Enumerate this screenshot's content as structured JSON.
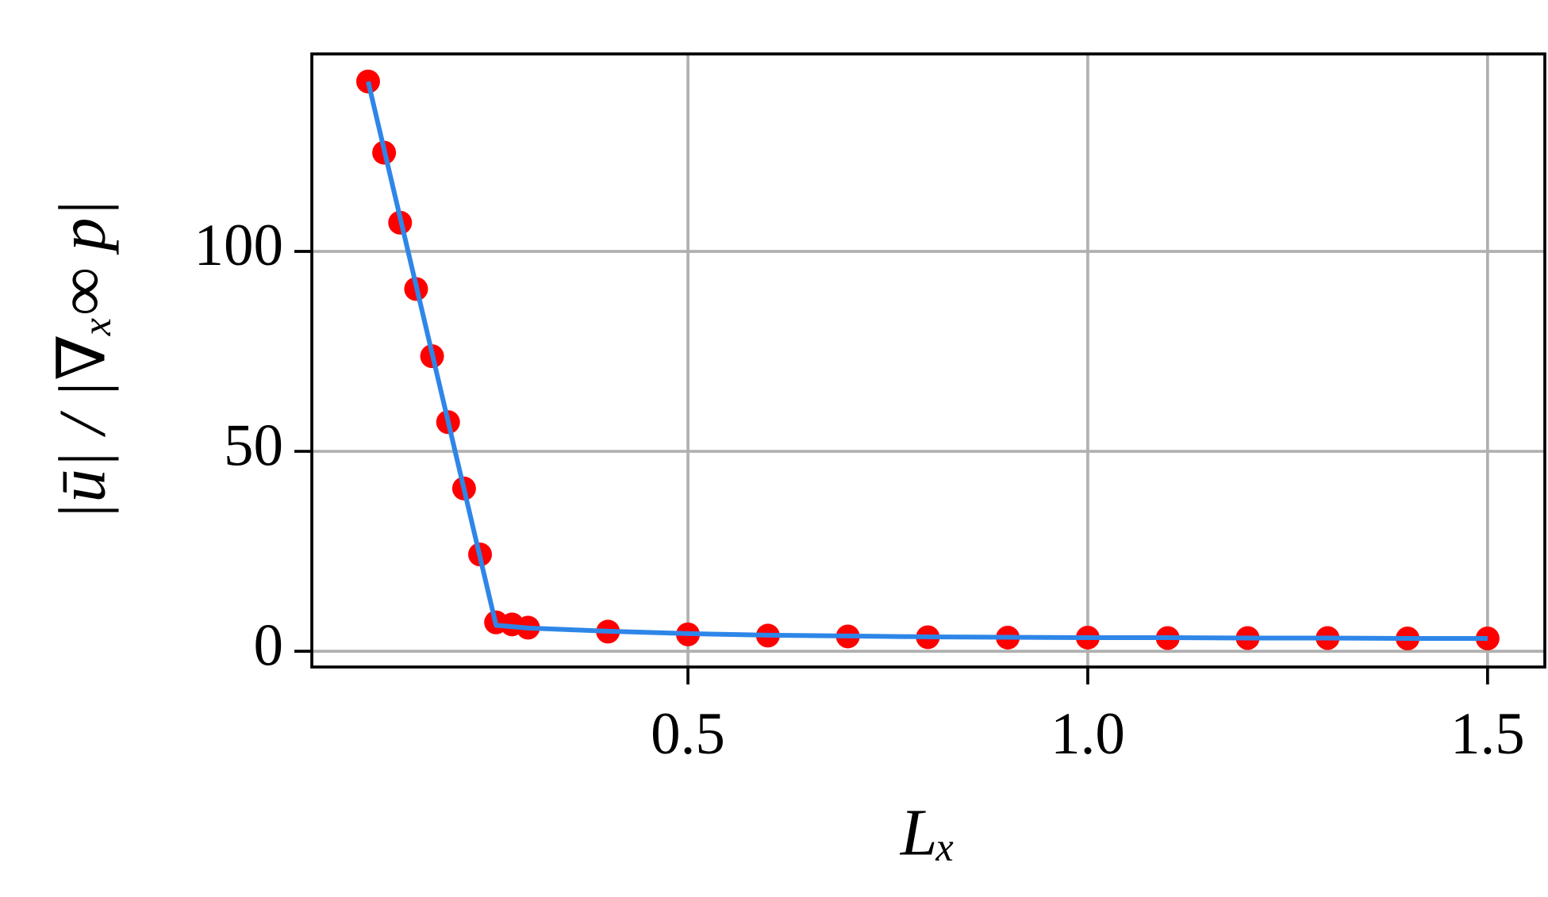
{
  "chart_data": {
    "type": "scatter",
    "xlabel": "Lₓ",
    "ylabel": "|ū| / |∇ₓ∞ p|",
    "xlim": [
      0.0296,
      1.5716
    ],
    "ylim": [
      -3.95,
      149.4
    ],
    "xticks": [
      0.5,
      {
        "value": 1,
        "label": "1.0"
      },
      1.5
    ],
    "yticks": [
      0,
      50,
      100
    ],
    "grid": true,
    "series": [
      {
        "type": "scatter",
        "color": "#ff0000",
        "x": [
          0.1,
          0.12,
          0.14,
          0.16,
          0.18,
          0.2,
          0.22,
          0.24,
          0.26,
          0.28,
          0.3,
          0.4,
          0.5,
          0.6,
          0.7,
          0.8,
          0.9,
          1.0,
          1.1,
          1.2,
          1.3,
          1.4,
          1.5
        ],
        "values": [
          142.5,
          124.7,
          107.2,
          90.6,
          73.8,
          57.3,
          40.7,
          24.2,
          7.2,
          6.7,
          5.9,
          4.9,
          4.2,
          3.9,
          3.7,
          3.5,
          3.4,
          3.4,
          3.3,
          3.3,
          3.3,
          3.2,
          3.2
        ]
      },
      {
        "type": "line",
        "color": "#2e86e8",
        "x": [
          0.1,
          0.26,
          0.3,
          0.4,
          0.5,
          0.6,
          0.7,
          0.8,
          0.9,
          1.0,
          1.1,
          1.2,
          1.3,
          1.4,
          1.5
        ],
        "values": [
          142.5,
          6.5,
          5.8,
          5.0,
          4.4,
          4.0,
          3.8,
          3.6,
          3.5,
          3.4,
          3.4,
          3.3,
          3.3,
          3.2,
          3.2
        ]
      }
    ]
  }
}
